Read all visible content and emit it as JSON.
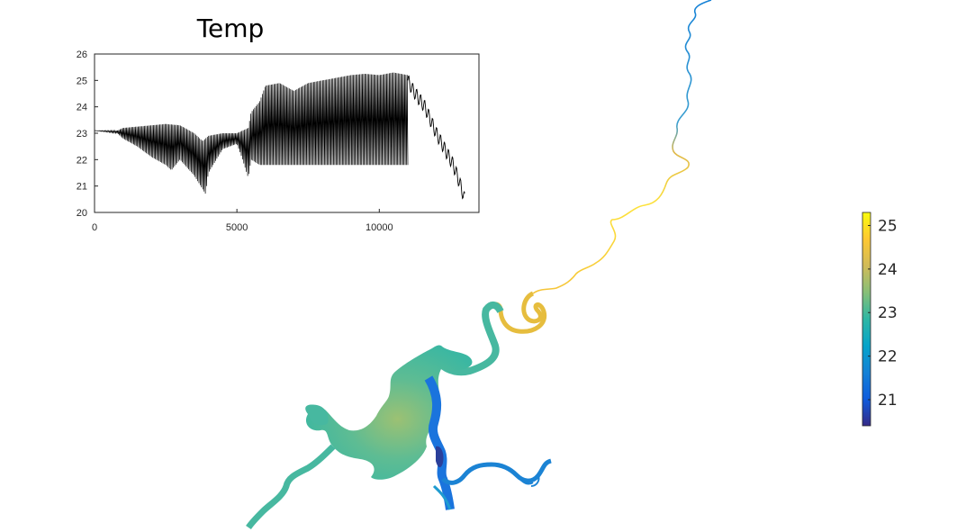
{
  "chart_data": [
    {
      "type": "line",
      "title": "Temp",
      "xlabel": "",
      "ylabel": "",
      "xlim": [
        0,
        13500
      ],
      "ylim": [
        20,
        26
      ],
      "x_ticks": [
        0,
        5000,
        10000
      ],
      "y_ticks": [
        20,
        21,
        22,
        23,
        24,
        25,
        26
      ],
      "series": [
        {
          "name": "Temp",
          "color": "#000000",
          "envelope_high": {
            "x": [
              0,
              800,
              1000,
              1500,
              2000,
              2500,
              3000,
              3500,
              3800,
              4000,
              4500,
              5000,
              5400,
              5500,
              5800,
              6000,
              6500,
              7000,
              7500,
              8000,
              8500,
              9000,
              9500,
              10000,
              10500,
              11000
            ],
            "y": [
              23.1,
              23.1,
              23.2,
              23.25,
              23.3,
              23.35,
              23.3,
              23.0,
              22.7,
              22.9,
              23.0,
              23.0,
              23.2,
              23.8,
              24.2,
              24.8,
              24.9,
              24.6,
              24.9,
              25.0,
              25.1,
              25.2,
              25.25,
              25.2,
              25.3,
              25.2
            ]
          },
          "envelope_low": {
            "x": [
              0,
              800,
              1000,
              1500,
              2000,
              2500,
              2700,
              3000,
              3500,
              3900,
              4000,
              4500,
              5000,
              5200,
              5400,
              5500,
              5800,
              6000,
              11000
            ],
            "y": [
              23.1,
              23.0,
              22.8,
              22.5,
              22.1,
              21.8,
              21.6,
              22.0,
              21.4,
              20.7,
              21.5,
              22.4,
              22.6,
              22.0,
              21.3,
              22.0,
              21.8,
              21.8,
              21.8
            ]
          },
          "tail": {
            "x": [
              11000,
              11200,
              11400,
              11600,
              11800,
              12000,
              12200,
              12400,
              12600,
              12800,
              13000
            ],
            "y": [
              25.0,
              24.6,
              24.3,
              24.0,
              23.5,
              23.0,
              22.6,
              22.2,
              21.8,
              21.2,
              20.5
            ]
          }
        }
      ]
    },
    {
      "type": "heatmap",
      "title": "",
      "colorbar": {
        "range": [
          20.4,
          25.3
        ],
        "ticks": [
          21,
          22,
          23,
          24,
          25
        ],
        "colormap": "parula",
        "stops": [
          "#352a87",
          "#0f5cdd",
          "#1481d6",
          "#06a4ca",
          "#2eb7a4",
          "#87bf77",
          "#d1bb59",
          "#fec832",
          "#f9fb0e"
        ]
      }
    }
  ]
}
